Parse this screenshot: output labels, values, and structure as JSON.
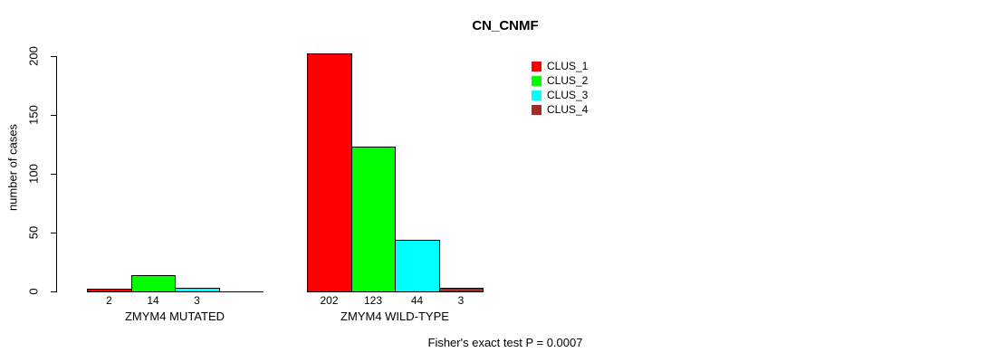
{
  "chart_data": {
    "type": "bar",
    "title": "CN_CNMF",
    "ylabel": "number of cases",
    "xlabel": "",
    "ylim": [
      0,
      200
    ],
    "yticks": [
      0,
      50,
      100,
      150,
      200
    ],
    "grid": false,
    "background_color": "#ffffff",
    "bar_border_color": "#000000",
    "categories": [
      "ZMYM4 MUTATED",
      "ZMYM4 WILD-TYPE"
    ],
    "series": [
      {
        "name": "CLUS_1",
        "color": "#ff0000",
        "values": [
          2,
          202
        ]
      },
      {
        "name": "CLUS_2",
        "color": "#00ff00",
        "values": [
          14,
          123
        ]
      },
      {
        "name": "CLUS_3",
        "color": "#00ffff",
        "values": [
          3,
          44
        ]
      },
      {
        "name": "CLUS_4",
        "color": "#a52a2a",
        "values": [
          0,
          3
        ]
      }
    ],
    "bar_value_labels": [
      [
        "2",
        "14",
        "3",
        ""
      ],
      [
        "202",
        "123",
        "44",
        "3"
      ]
    ],
    "legend": {
      "position": "top-right",
      "entries": [
        {
          "label": "CLUS_1",
          "color": "#ff0000"
        },
        {
          "label": "CLUS_2",
          "color": "#00ff00"
        },
        {
          "label": "CLUS_3",
          "color": "#00ffff"
        },
        {
          "label": "CLUS_4",
          "color": "#a52a2a"
        }
      ]
    },
    "footnote": "Fisher's exact test P = 0.0007"
  }
}
